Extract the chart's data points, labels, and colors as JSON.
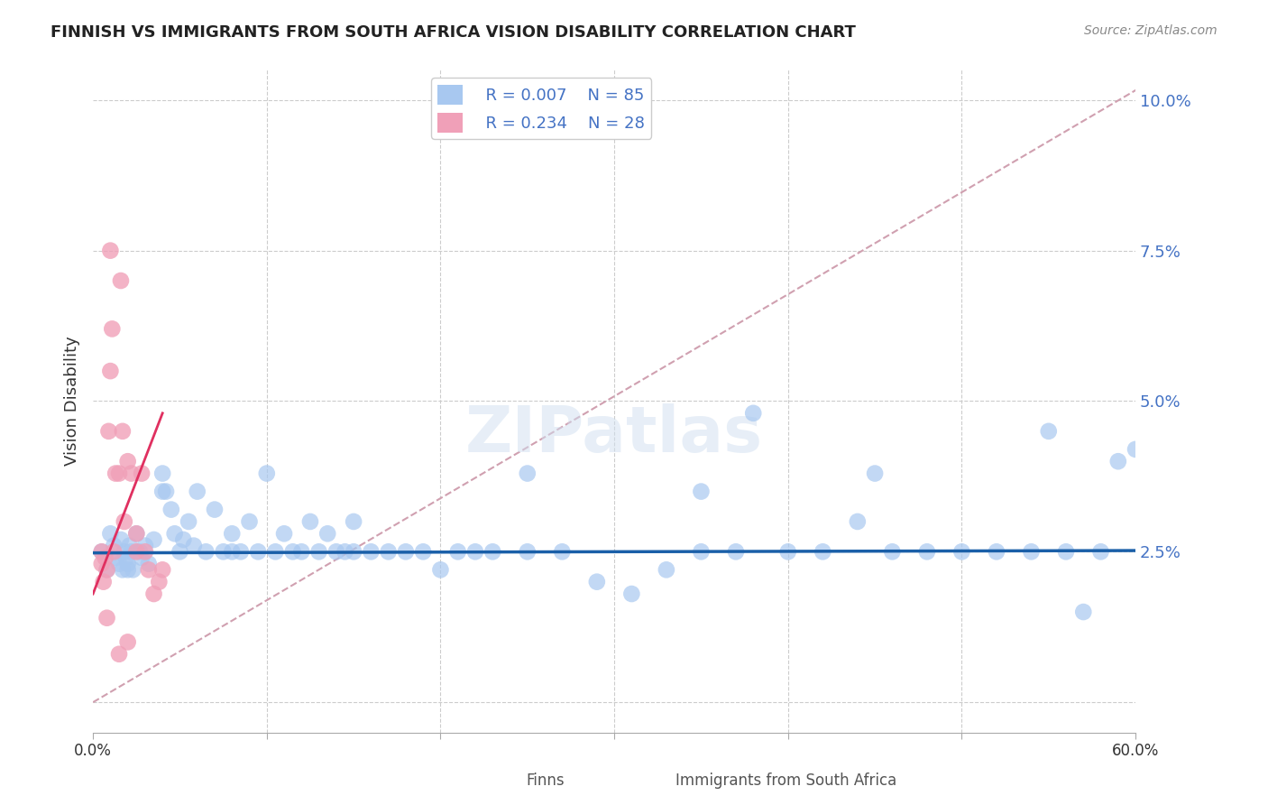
{
  "title": "FINNISH VS IMMIGRANTS FROM SOUTH AFRICA VISION DISABILITY CORRELATION CHART",
  "source": "Source: ZipAtlas.com",
  "xlabel": "",
  "ylabel": "Vision Disability",
  "xlim": [
    0.0,
    0.6
  ],
  "ylim": [
    -0.005,
    0.105
  ],
  "yticks": [
    0.0,
    0.025,
    0.05,
    0.075,
    0.1
  ],
  "ytick_labels": [
    "",
    "2.5%",
    "5.0%",
    "7.5%",
    "10.0%"
  ],
  "xticks": [
    0.0,
    0.1,
    0.2,
    0.3,
    0.4,
    0.5,
    0.6
  ],
  "xtick_labels": [
    "0.0%",
    "",
    "",
    "",
    "",
    "",
    "60.0%"
  ],
  "legend_r_blue": "R = 0.007",
  "legend_n_blue": "N = 85",
  "legend_r_pink": "R = 0.234",
  "legend_n_pink": "N = 28",
  "legend_label_blue": "Finns",
  "legend_label_pink": "Immigrants from South Africa",
  "blue_color": "#a8c8f0",
  "pink_color": "#f0a0b8",
  "trend_blue_color": "#1a5fa8",
  "trend_pink_color": "#e03060",
  "diag_color": "#d0a0b0",
  "watermark": "ZIPatlas",
  "finns_x": [
    0.005,
    0.008,
    0.01,
    0.012,
    0.013,
    0.015,
    0.016,
    0.017,
    0.018,
    0.019,
    0.02,
    0.021,
    0.022,
    0.023,
    0.025,
    0.027,
    0.028,
    0.03,
    0.032,
    0.035,
    0.04,
    0.042,
    0.045,
    0.047,
    0.05,
    0.052,
    0.055,
    0.058,
    0.06,
    0.065,
    0.07,
    0.075,
    0.08,
    0.085,
    0.09,
    0.095,
    0.1,
    0.105,
    0.11,
    0.115,
    0.12,
    0.125,
    0.13,
    0.135,
    0.14,
    0.145,
    0.15,
    0.16,
    0.17,
    0.18,
    0.19,
    0.2,
    0.21,
    0.22,
    0.23,
    0.25,
    0.27,
    0.29,
    0.31,
    0.33,
    0.35,
    0.37,
    0.38,
    0.4,
    0.42,
    0.44,
    0.46,
    0.48,
    0.5,
    0.52,
    0.54,
    0.56,
    0.58,
    0.59,
    0.6,
    0.55,
    0.45,
    0.35,
    0.25,
    0.15,
    0.08,
    0.04,
    0.02,
    0.63,
    0.57
  ],
  "finns_y": [
    0.025,
    0.022,
    0.028,
    0.026,
    0.024,
    0.023,
    0.027,
    0.022,
    0.025,
    0.024,
    0.023,
    0.026,
    0.025,
    0.022,
    0.028,
    0.025,
    0.024,
    0.026,
    0.023,
    0.027,
    0.038,
    0.035,
    0.032,
    0.028,
    0.025,
    0.027,
    0.03,
    0.026,
    0.035,
    0.025,
    0.032,
    0.025,
    0.028,
    0.025,
    0.03,
    0.025,
    0.038,
    0.025,
    0.028,
    0.025,
    0.025,
    0.03,
    0.025,
    0.028,
    0.025,
    0.025,
    0.03,
    0.025,
    0.025,
    0.025,
    0.025,
    0.022,
    0.025,
    0.025,
    0.025,
    0.025,
    0.025,
    0.02,
    0.018,
    0.022,
    0.025,
    0.025,
    0.048,
    0.025,
    0.025,
    0.03,
    0.025,
    0.025,
    0.025,
    0.025,
    0.025,
    0.025,
    0.025,
    0.04,
    0.042,
    0.045,
    0.038,
    0.035,
    0.038,
    0.025,
    0.025,
    0.035,
    0.022,
    0.042,
    0.015
  ],
  "sa_x": [
    0.005,
    0.007,
    0.008,
    0.009,
    0.01,
    0.011,
    0.012,
    0.013,
    0.015,
    0.016,
    0.017,
    0.018,
    0.02,
    0.022,
    0.025,
    0.028,
    0.03,
    0.032,
    0.035,
    0.038,
    0.04,
    0.015,
    0.02,
    0.025,
    0.005,
    0.006,
    0.008,
    0.01
  ],
  "sa_y": [
    0.025,
    0.024,
    0.022,
    0.045,
    0.055,
    0.062,
    0.025,
    0.038,
    0.038,
    0.07,
    0.045,
    0.03,
    0.04,
    0.038,
    0.028,
    0.038,
    0.025,
    0.022,
    0.018,
    0.02,
    0.022,
    0.008,
    0.01,
    0.025,
    0.023,
    0.02,
    0.014,
    0.075
  ]
}
